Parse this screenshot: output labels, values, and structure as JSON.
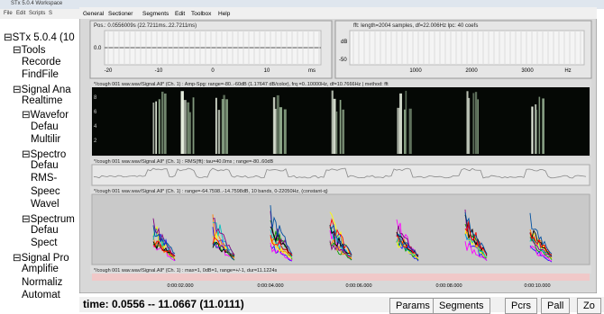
{
  "workspace": {
    "title": "STx 5.0.4 Workspace",
    "menu": [
      "File",
      "Edit",
      "Scripts",
      "S"
    ],
    "tree": [
      "STx 5.0.4 (10",
      "Tools",
      "Recorde",
      "FindFile",
      "Signal Ana",
      "Realtime",
      "Wavefor",
      "Defau",
      "Multilir",
      "Spectro",
      "Defau",
      "RMS-",
      "Speec",
      "Wavel",
      "Spectrum",
      "Defau",
      "Spect",
      "Signal Pro",
      "Amplifie",
      "Normaliz",
      "Automat"
    ],
    "status": "time: 0.0556 -- 11.0667 (11.0111)",
    "buttons": [
      "Params",
      "Segments",
      "Pcrs",
      "Pall",
      "Zo"
    ]
  },
  "viewer": {
    "menu": [
      "General",
      "Sectioner",
      "Segments",
      "Edit",
      "Toolbox",
      "Help"
    ],
    "waveform_zoom": {
      "header": "Pos.: 0.0556009s (22.7211ms..22.7211ms)",
      "y_label": "0.0",
      "x_ticks": [
        "-20",
        "-10",
        "0",
        "10",
        "ms"
      ]
    },
    "spectrum": {
      "header": "fft: length=2004 samples, df=22.006Hz lpc: 40 coefs",
      "y_labels": [
        "dB",
        "-50"
      ],
      "x_ticks": [
        "1000",
        "2000",
        "3000",
        "Hz"
      ]
    },
    "spectrogram": {
      "header": "*/cough 001 wav.wav/Signal.All* (Ch. 1) : Amp-Spg: range=-80..-60dB (1.17647 dB/color), frq =0..10000Hz, df=10.7666Hz | method: fft",
      "y_ticks": [
        "8",
        "6",
        "4",
        "2"
      ]
    },
    "rms": {
      "header": "*/cough 001 wav.wav/Signal.All* (Ch. 1) : RMS(fft): tau=40.0ms ; range=-80..60dB"
    },
    "bands": {
      "header": "*/cough 001 wav.wav/Signal.All* (Ch. 1) : range=-64.7598..-14.7598dB, 10 bands, 0-22050Hz, (constant-q)"
    },
    "signal": {
      "header": "*/cough 001 wav.wav/Signal.All* (Ch. 1) : max=1, 0dB=1, range=+/-1, dur=11.1224s"
    },
    "time_axis": [
      "0:00:02.000",
      "0:00:04.000",
      "0:00:06.000",
      "0:00:08.000",
      "0:00:10.000"
    ]
  }
}
